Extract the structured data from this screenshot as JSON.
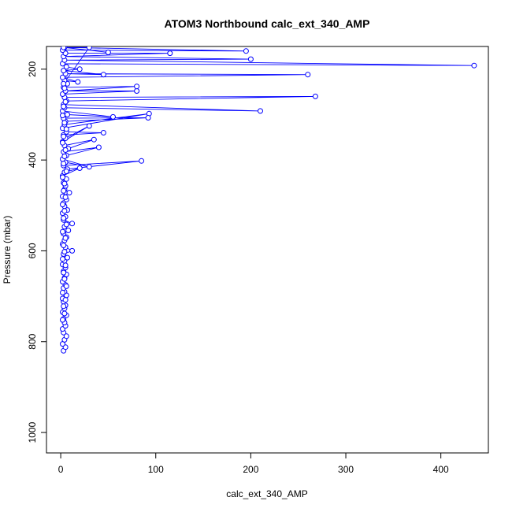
{
  "chart_data": {
    "type": "line",
    "title": "ATOM3 Northbound calc_ext_340_AMP",
    "xlabel": "calc_ext_340_AMP",
    "ylabel": "Pressure (mbar)",
    "xlim": [
      -15,
      450
    ],
    "ylim": [
      1045,
      150
    ],
    "y_reversed": true,
    "xticks": [
      0,
      100,
      200,
      300,
      400
    ],
    "yticks": [
      200,
      400,
      600,
      800,
      1000
    ],
    "grid": false,
    "legend": "none",
    "series": [
      {
        "color": "#0000ff",
        "marker": "open-circle",
        "points": [
          [
            3,
            820
          ],
          [
            5,
            812
          ],
          [
            2,
            805
          ],
          [
            4,
            796
          ],
          [
            6,
            788
          ],
          [
            3,
            780
          ],
          [
            2,
            772
          ],
          [
            5,
            765
          ],
          [
            4,
            758
          ],
          [
            3,
            750
          ],
          [
            6,
            742
          ],
          [
            2,
            735
          ],
          [
            4,
            727
          ],
          [
            5,
            720
          ],
          [
            3,
            712
          ],
          [
            2,
            705
          ],
          [
            6,
            698
          ],
          [
            4,
            690
          ],
          [
            3,
            682
          ],
          [
            5,
            675
          ],
          [
            2,
            668
          ],
          [
            4,
            660
          ],
          [
            6,
            652
          ],
          [
            3,
            645
          ],
          [
            5,
            637
          ],
          [
            2,
            630
          ],
          [
            4,
            622
          ],
          [
            7,
            615
          ],
          [
            3,
            607
          ],
          [
            12,
            600
          ],
          [
            5,
            592
          ],
          [
            2,
            585
          ],
          [
            4,
            577
          ],
          [
            6,
            570
          ],
          [
            3,
            562
          ],
          [
            8,
            555
          ],
          [
            4,
            547
          ],
          [
            12,
            540
          ],
          [
            3,
            532
          ],
          [
            5,
            525
          ],
          [
            2,
            517
          ],
          [
            7,
            510
          ],
          [
            4,
            502
          ],
          [
            3,
            495
          ],
          [
            6,
            487
          ],
          [
            2,
            480
          ],
          [
            9,
            472
          ],
          [
            4,
            465
          ],
          [
            5,
            457
          ],
          [
            3,
            450
          ],
          [
            6,
            442
          ],
          [
            2,
            435
          ],
          [
            20,
            418
          ],
          [
            4,
            427
          ],
          [
            7,
            420
          ],
          [
            85,
            402
          ],
          [
            3,
            412
          ],
          [
            5,
            405
          ],
          [
            30,
            415
          ],
          [
            2,
            398
          ],
          [
            6,
            390
          ],
          [
            40,
            372
          ],
          [
            3,
            382
          ],
          [
            8,
            375
          ],
          [
            35,
            355
          ],
          [
            4,
            368
          ],
          [
            2,
            360
          ],
          [
            30,
            325
          ],
          [
            5,
            352
          ],
          [
            3,
            345
          ],
          [
            45,
            340
          ],
          [
            6,
            338
          ],
          [
            2,
            330
          ],
          [
            93,
            298
          ],
          [
            4,
            322
          ],
          [
            5,
            315
          ],
          [
            92,
            307
          ],
          [
            3,
            308
          ],
          [
            7,
            300
          ],
          [
            55,
            305
          ],
          [
            2,
            292
          ],
          [
            4,
            285
          ],
          [
            210,
            292
          ],
          [
            3,
            278
          ],
          [
            6,
            270
          ],
          [
            268,
            260
          ],
          [
            4,
            262
          ],
          [
            2,
            255
          ],
          [
            80,
            248
          ],
          [
            5,
            248
          ],
          [
            80,
            238
          ],
          [
            3,
            240
          ],
          [
            7,
            232
          ],
          [
            4,
            225
          ],
          [
            18,
            228
          ],
          [
            2,
            218
          ],
          [
            260,
            212
          ],
          [
            5,
            210
          ],
          [
            45,
            212
          ],
          [
            3,
            203
          ],
          [
            20,
            200
          ],
          [
            6,
            195
          ],
          [
            2,
            188
          ],
          [
            435,
            192
          ],
          [
            4,
            180
          ],
          [
            200,
            178
          ],
          [
            3,
            172
          ],
          [
            115,
            165
          ],
          [
            5,
            165
          ],
          [
            2,
            158
          ],
          [
            195,
            160
          ],
          [
            4,
            152
          ],
          [
            50,
            163
          ],
          [
            3,
            152
          ],
          [
            30,
            152
          ],
          [
            3,
            232
          ],
          [
            4,
            242
          ],
          [
            5,
            272
          ],
          [
            3,
            282
          ],
          [
            2,
            302
          ],
          [
            4,
            318
          ],
          [
            6,
            332
          ],
          [
            3,
            348
          ],
          [
            2,
            362
          ],
          [
            5,
            378
          ],
          [
            4,
            392
          ],
          [
            3,
            408
          ],
          [
            6,
            425
          ],
          [
            2,
            438
          ],
          [
            4,
            452
          ],
          [
            3,
            468
          ],
          [
            5,
            482
          ],
          [
            2,
            498
          ],
          [
            4,
            512
          ],
          [
            3,
            528
          ],
          [
            6,
            542
          ],
          [
            2,
            558
          ],
          [
            5,
            572
          ],
          [
            3,
            588
          ],
          [
            4,
            602
          ],
          [
            2,
            618
          ],
          [
            5,
            632
          ],
          [
            3,
            648
          ],
          [
            4,
            662
          ],
          [
            6,
            678
          ],
          [
            2,
            692
          ],
          [
            5,
            708
          ],
          [
            3,
            722
          ],
          [
            4,
            738
          ],
          [
            2,
            752
          ]
        ]
      }
    ]
  }
}
